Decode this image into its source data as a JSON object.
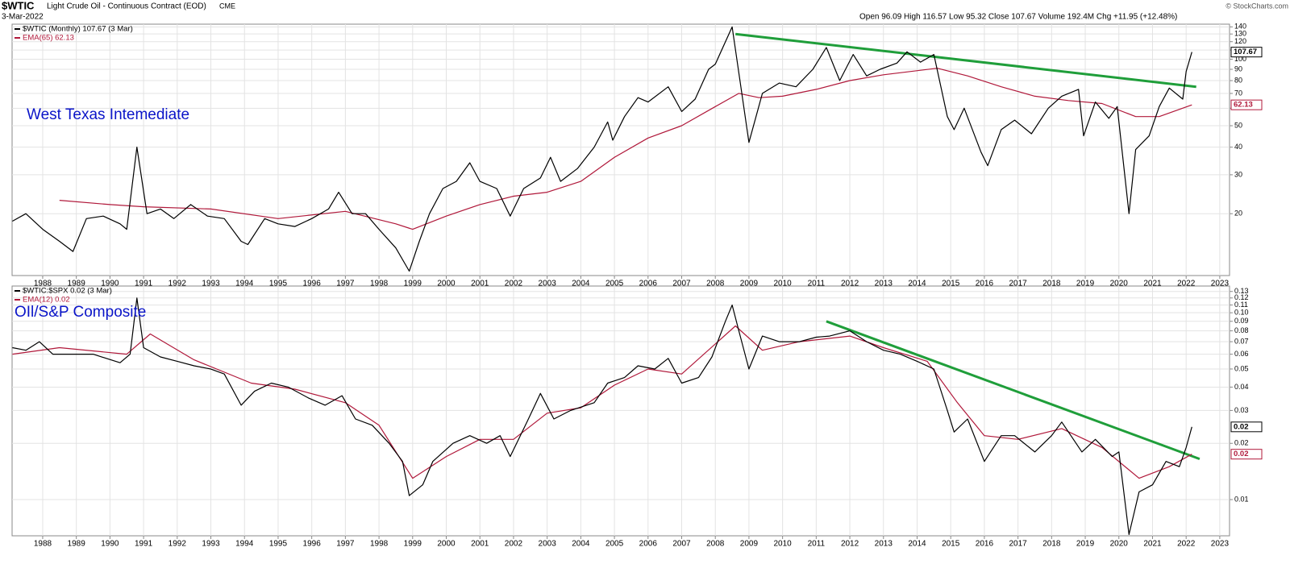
{
  "header": {
    "symbol": "$WTIC",
    "name": "Light Crude Oil - Continuous Contract (EOD)",
    "exchange": "CME",
    "date": "3-Mar-2022",
    "quote": "Open 96.09 High 116.57 Low 95.32 Close 107.67 Volume 192.4M Chg +11.95 (+12.48%)",
    "copyright": "© StockCharts.com"
  },
  "chart_data": [
    {
      "type": "line",
      "annotation": "West Texas Intemediate",
      "log_scale": true,
      "grid": true,
      "legend": "upper left",
      "xlim": [
        1987.09,
        2023.29
      ],
      "xticks": [
        1988,
        1989,
        1990,
        1991,
        1992,
        1993,
        1994,
        1995,
        1996,
        1997,
        1998,
        1999,
        2000,
        2001,
        2002,
        2003,
        2004,
        2005,
        2006,
        2007,
        2008,
        2009,
        2010,
        2011,
        2012,
        2013,
        2014,
        2015,
        2016,
        2017,
        2018,
        2019,
        2020,
        2021,
        2022,
        2023
      ],
      "ylim": [
        10.5,
        144
      ],
      "yticks": [
        20,
        30,
        40,
        50,
        60,
        70,
        80,
        90,
        100,
        110,
        120,
        130,
        140
      ],
      "series": [
        {
          "name": "$WTIC (Monthly) 107.67 (3 Mar)",
          "color": "#000000",
          "last_value_label": "107.67",
          "x": [
            1987.1,
            1987.5,
            1988.0,
            1988.5,
            1988.9,
            1989.3,
            1989.8,
            1990.3,
            1990.5,
            1990.8,
            1991.1,
            1991.5,
            1991.9,
            1992.4,
            1992.9,
            1993.4,
            1993.9,
            1994.1,
            1994.6,
            1995.0,
            1995.5,
            1996.0,
            1996.5,
            1996.8,
            1997.2,
            1997.6,
            1998.0,
            1998.5,
            1998.9,
            1999.2,
            1999.5,
            1999.9,
            2000.3,
            2000.7,
            2001.0,
            2001.5,
            2001.9,
            2002.3,
            2002.8,
            2003.1,
            2003.4,
            2003.9,
            2004.4,
            2004.8,
            2004.95,
            2005.3,
            2005.7,
            2006.0,
            2006.6,
            2007.0,
            2007.4,
            2007.8,
            2008.0,
            2008.5,
            2008.8,
            2009.0,
            2009.4,
            2009.9,
            2010.4,
            2010.9,
            2011.3,
            2011.7,
            2012.1,
            2012.5,
            2012.9,
            2013.4,
            2013.7,
            2014.1,
            2014.5,
            2014.9,
            2015.1,
            2015.4,
            2015.9,
            2016.1,
            2016.5,
            2016.9,
            2017.4,
            2017.9,
            2018.3,
            2018.8,
            2018.95,
            2019.3,
            2019.7,
            2019.95,
            2020.3,
            2020.5,
            2020.9,
            2021.2,
            2021.5,
            2021.9,
            2022.0,
            2022.17
          ],
          "values": [
            18.5,
            20,
            17,
            15,
            13.5,
            19,
            19.5,
            18,
            17,
            40,
            20,
            21,
            19,
            22,
            19.5,
            19,
            15,
            14.5,
            19,
            18,
            17.5,
            19,
            21,
            25,
            20,
            20,
            17,
            14,
            11,
            15,
            20,
            26,
            28,
            34,
            28,
            26,
            19.5,
            26,
            29,
            36,
            28,
            32,
            40,
            52,
            43,
            55,
            67,
            64,
            75,
            58,
            66,
            90,
            95,
            140,
            68,
            42,
            70,
            78,
            75,
            90,
            113,
            80,
            105,
            84,
            90,
            96,
            108,
            97,
            105,
            55,
            48,
            60,
            38,
            33,
            48,
            53,
            46,
            60,
            68,
            73,
            45,
            64,
            54,
            61,
            20,
            39,
            45,
            61,
            74,
            66,
            88,
            107.67
          ]
        },
        {
          "name": "EMA(65) 62.13",
          "color": "#b0183a",
          "last_value_label": "62.13",
          "x": [
            1988.5,
            1990,
            1991,
            1993,
            1995,
            1997,
            1998.5,
            1999,
            2000,
            2001,
            2002,
            2003,
            2004,
            2005,
            2006,
            2007,
            2008,
            2008.7,
            2009.3,
            2010,
            2011,
            2012,
            2013,
            2014.6,
            2015.5,
            2016.5,
            2017.5,
            2018.5,
            2019.5,
            2020.5,
            2021.2,
            2022.17
          ],
          "values": [
            23,
            22,
            21.5,
            21,
            19,
            20.5,
            18,
            17,
            19.5,
            22,
            24,
            25,
            28,
            36,
            44,
            50,
            61,
            70,
            67,
            68,
            73,
            80,
            85,
            91,
            84,
            75,
            68,
            65,
            63,
            55,
            55,
            62.13
          ]
        }
      ],
      "trendlines": [
        {
          "color": "#1f9e3a",
          "x": [
            2008.6,
            2022.3
          ],
          "values": [
            130,
            75
          ]
        }
      ]
    },
    {
      "type": "line",
      "annotation": "OIl/S&P Composite",
      "log_scale": true,
      "grid": true,
      "legend": "upper left",
      "xlim": [
        1987.09,
        2023.29
      ],
      "xticks": [
        1988,
        1989,
        1990,
        1991,
        1992,
        1993,
        1994,
        1995,
        1996,
        1997,
        1998,
        1999,
        2000,
        2001,
        2002,
        2003,
        2004,
        2005,
        2006,
        2007,
        2008,
        2009,
        2010,
        2011,
        2012,
        2013,
        2014,
        2015,
        2016,
        2017,
        2018,
        2019,
        2020,
        2021,
        2022,
        2023
      ],
      "ylim": [
        0.0064,
        0.139
      ],
      "yticks": [
        0.01,
        0.02,
        0.03,
        0.04,
        0.05,
        0.06,
        0.07,
        0.08,
        0.09,
        {
          "value": 0.1,
          "label": "0.10"
        },
        0.11,
        0.12,
        0.13
      ],
      "series": [
        {
          "name": "$WTIC:$SPX 0.02 (3 Mar)",
          "color": "#000000",
          "last_value_label": "0.02",
          "x": [
            1987.1,
            1987.5,
            1987.9,
            1988.3,
            1988.9,
            1989.5,
            1990.3,
            1990.6,
            1990.8,
            1991.0,
            1991.5,
            1992.0,
            1992.5,
            1993.0,
            1993.4,
            1993.9,
            1994.3,
            1994.8,
            1995.3,
            1995.9,
            1996.4,
            1996.9,
            1997.3,
            1997.8,
            1998.3,
            1998.7,
            1998.9,
            1999.3,
            1999.6,
            2000.2,
            2000.7,
            2001.2,
            2001.6,
            2001.9,
            2002.4,
            2002.8,
            2003.2,
            2003.7,
            2004.4,
            2004.8,
            2005.3,
            2005.7,
            2006.2,
            2006.6,
            2007.0,
            2007.5,
            2007.9,
            2008.3,
            2008.5,
            2008.7,
            2009.0,
            2009.4,
            2009.9,
            2010.5,
            2011.0,
            2011.4,
            2012.0,
            2012.5,
            2013.0,
            2013.5,
            2014.0,
            2014.5,
            2014.9,
            2015.1,
            2015.5,
            2016.0,
            2016.5,
            2016.9,
            2017.5,
            2018.0,
            2018.3,
            2018.9,
            2019.3,
            2019.8,
            2020.0,
            2020.3,
            2020.6,
            2021.0,
            2021.4,
            2021.8,
            2022.0,
            2022.17
          ],
          "values": [
            0.065,
            0.063,
            0.07,
            0.06,
            0.06,
            0.06,
            0.054,
            0.06,
            0.12,
            0.065,
            0.058,
            0.055,
            0.052,
            0.05,
            0.047,
            0.032,
            0.038,
            0.042,
            0.04,
            0.035,
            0.032,
            0.036,
            0.027,
            0.025,
            0.02,
            0.016,
            0.0105,
            0.012,
            0.016,
            0.02,
            0.022,
            0.02,
            0.022,
            0.017,
            0.026,
            0.037,
            0.027,
            0.03,
            0.033,
            0.042,
            0.045,
            0.052,
            0.05,
            0.057,
            0.042,
            0.045,
            0.058,
            0.09,
            0.11,
            0.08,
            0.05,
            0.075,
            0.07,
            0.07,
            0.074,
            0.075,
            0.08,
            0.07,
            0.063,
            0.06,
            0.055,
            0.05,
            0.03,
            0.023,
            0.027,
            0.016,
            0.022,
            0.022,
            0.018,
            0.022,
            0.026,
            0.018,
            0.021,
            0.017,
            0.018,
            0.0065,
            0.011,
            0.012,
            0.016,
            0.015,
            0.019,
            0.0245
          ]
        },
        {
          "name": "EMA(12) 0.02",
          "color": "#b0183a",
          "last_value_label": "0.02",
          "x": [
            1987.1,
            1988.5,
            1990.5,
            1991.2,
            1992.5,
            1994.2,
            1995.5,
            1997,
            1998,
            1999.0,
            2000,
            2001,
            2002,
            2003,
            2004,
            2005,
            2006,
            2007,
            2008.6,
            2009.4,
            2010.5,
            2012,
            2013,
            2014.3,
            2015.2,
            2016,
            2017,
            2018.3,
            2019.5,
            2020.6,
            2021.5,
            2022.17
          ],
          "values": [
            0.06,
            0.065,
            0.06,
            0.077,
            0.056,
            0.042,
            0.039,
            0.033,
            0.025,
            0.013,
            0.017,
            0.021,
            0.021,
            0.029,
            0.031,
            0.041,
            0.05,
            0.047,
            0.085,
            0.063,
            0.07,
            0.075,
            0.065,
            0.055,
            0.033,
            0.022,
            0.021,
            0.024,
            0.019,
            0.013,
            0.015,
            0.0175
          ]
        }
      ],
      "trendlines": [
        {
          "color": "#1f9e3a",
          "x": [
            2011.3,
            2022.4
          ],
          "values": [
            0.09,
            0.0165
          ]
        }
      ]
    }
  ]
}
